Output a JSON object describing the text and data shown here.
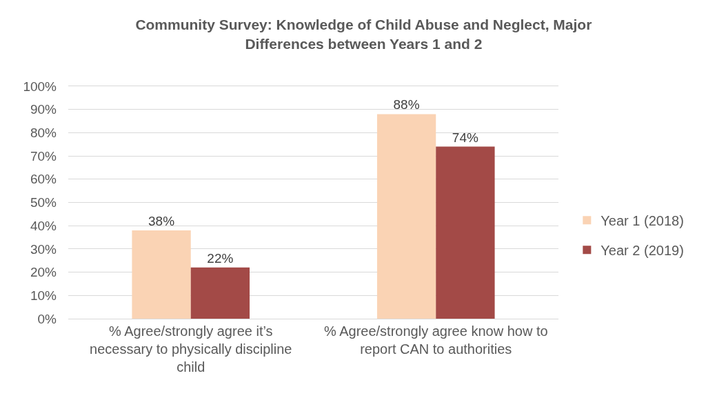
{
  "chart_data": {
    "type": "bar",
    "title": "Community Survey: Knowledge of Child Abuse and Neglect, Major Differences between Years 1 and 2",
    "categories": [
      "% Agree/strongly agree it’s necessary to physically discipline child",
      "% Agree/strongly agree know how to report CAN to authorities"
    ],
    "series": [
      {
        "name": "Year 1 (2018)",
        "color": "#fad3b4",
        "values": [
          38,
          88
        ],
        "value_labels": [
          "38%",
          "88%"
        ]
      },
      {
        "name": "Year 2 (2019)",
        "color": "#a34a47",
        "values": [
          22,
          74
        ],
        "value_labels": [
          "22%",
          "74%"
        ]
      }
    ],
    "ylim": [
      0,
      100
    ],
    "yticks": [
      {
        "value": 0,
        "label": "0%"
      },
      {
        "value": 10,
        "label": "10%"
      },
      {
        "value": 20,
        "label": "20%"
      },
      {
        "value": 30,
        "label": "30%"
      },
      {
        "value": 40,
        "label": "40%"
      },
      {
        "value": 50,
        "label": "50%"
      },
      {
        "value": 60,
        "label": "60%"
      },
      {
        "value": 70,
        "label": "70%"
      },
      {
        "value": 80,
        "label": "80%"
      },
      {
        "value": 90,
        "label": "90%"
      },
      {
        "value": 100,
        "label": "100%"
      }
    ],
    "grid": "y",
    "legend": "right"
  }
}
